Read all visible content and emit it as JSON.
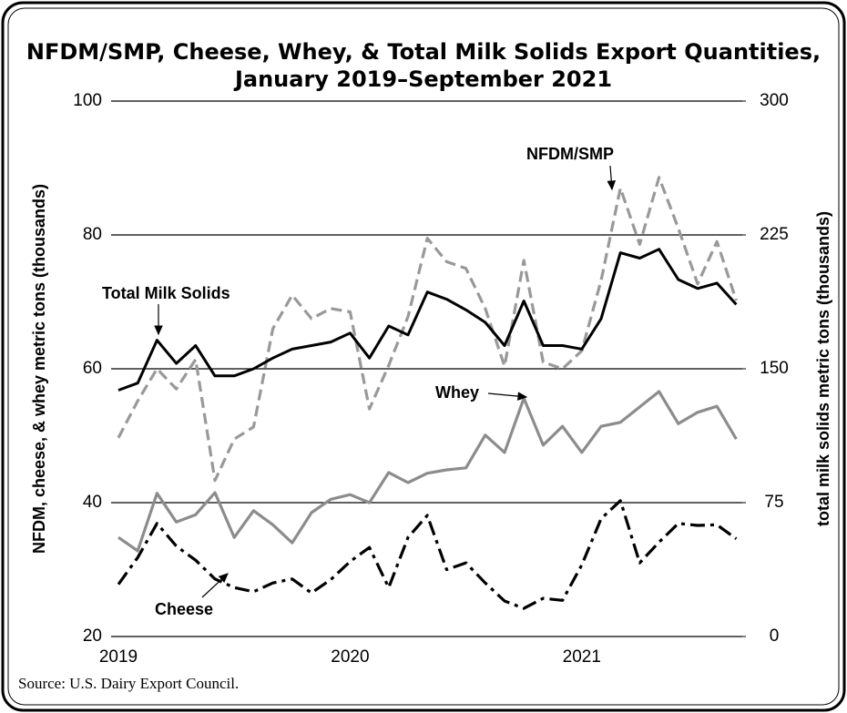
{
  "chart_data": {
    "type": "line",
    "title": [
      "NFDM/SMP, Cheese, Whey, & Total Milk Solids Export Quantities,",
      "January 2019–September 2021"
    ],
    "y_label": "NFDM, cheese, & whey metric tons (thousands)",
    "y2_label": "total milk solids metric tons (thousands)",
    "source": "Source: U.S. Dairy Export Council.",
    "categories": [
      "2019",
      null,
      null,
      null,
      null,
      null,
      null,
      null,
      null,
      null,
      null,
      null,
      "2020",
      null,
      null,
      null,
      null,
      null,
      null,
      null,
      null,
      null,
      null,
      null,
      "2021",
      null,
      null,
      null,
      null,
      null,
      null,
      null,
      null
    ],
    "series": [
      {
        "name": "NFDM/SMP",
        "color": "#999999",
        "line_style": "dashed",
        "values": [
          49.7,
          55.2,
          60,
          57,
          61.4,
          43.3,
          49.5,
          51.3,
          66,
          71,
          67.5,
          69,
          68.5,
          54,
          60.5,
          67.8,
          79.5,
          76,
          75,
          69,
          60.4,
          76.2,
          61,
          60,
          62.7,
          73.2,
          87,
          78.6,
          88.6,
          81,
          72.7,
          79,
          70.2
        ]
      },
      {
        "name": "Total Milk Solids",
        "color": "#000000",
        "line_style": "solid",
        "axis": "y2",
        "values": [
          138,
          142,
          166,
          153,
          163,
          146,
          146,
          150,
          156,
          161,
          163,
          165,
          170,
          156,
          174,
          169,
          193,
          189,
          183,
          176,
          163,
          188,
          163,
          163,
          161,
          178,
          215,
          212,
          217,
          200,
          195,
          198,
          186
        ]
      },
      {
        "name": "Whey",
        "color": "#8c8c8c",
        "line_style": "solid",
        "values": [
          34.8,
          32.8,
          41.4,
          37.1,
          38.2,
          41.5,
          34.8,
          38.8,
          36.7,
          34,
          38.5,
          40.5,
          41.2,
          40,
          44.5,
          43,
          44.4,
          44.9,
          45.2,
          50.1,
          47.5,
          55.6,
          48.6,
          51.4,
          47.5,
          51.4,
          52,
          54.3,
          56.6,
          51.8,
          53.5,
          54.4,
          49.5
        ]
      },
      {
        "name": "Cheese",
        "color": "#000000",
        "line_style": "dashdot",
        "values": [
          27.8,
          31.8,
          36.9,
          33.5,
          31.4,
          28.6,
          27.3,
          26.7,
          28,
          28.6,
          26.5,
          28.5,
          31.2,
          33.3,
          27.3,
          34.8,
          38.1,
          30,
          31,
          28,
          25.3,
          24.2,
          25.7,
          25.4,
          30.7,
          37.6,
          40.3,
          31,
          34.1,
          36.9,
          36.6,
          36.7,
          34.6
        ]
      }
    ],
    "ylim": [
      20,
      100
    ],
    "yticks": [
      20,
      40,
      60,
      80,
      100
    ],
    "y2lim": [
      0,
      300
    ],
    "y2ticks": [
      0,
      75,
      150,
      225,
      300
    ],
    "grid": true
  }
}
